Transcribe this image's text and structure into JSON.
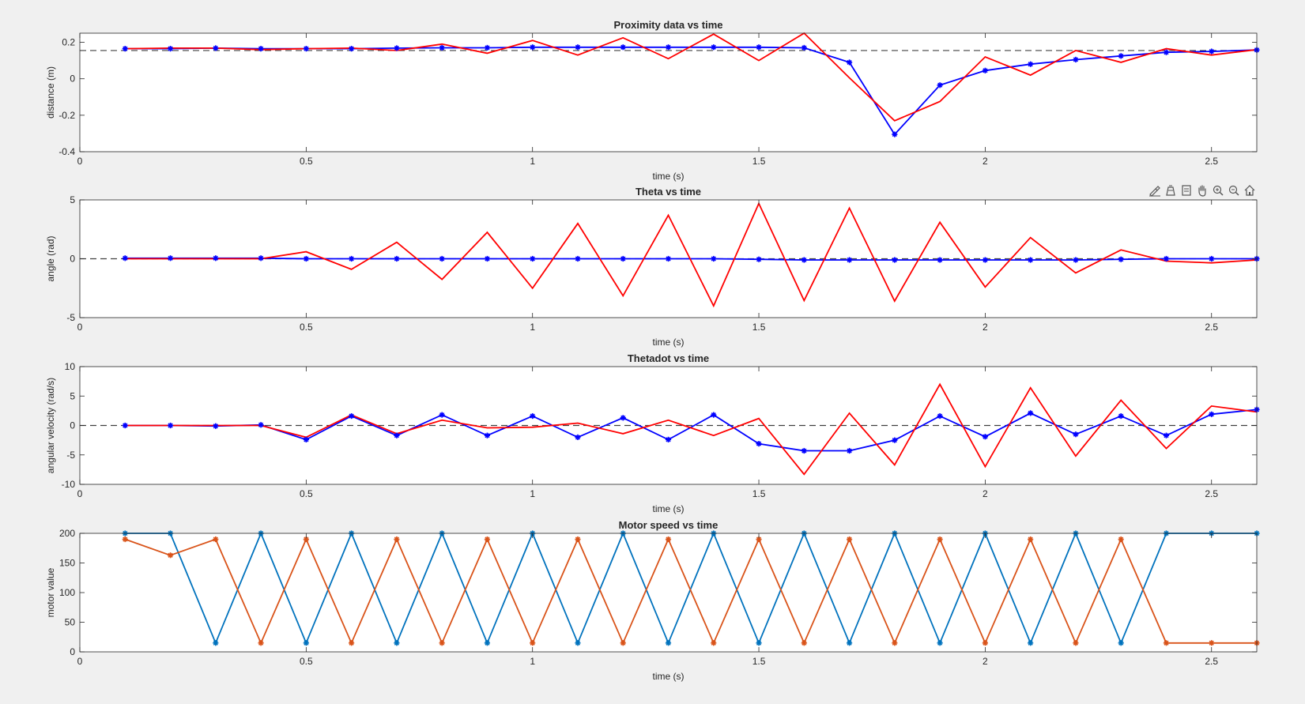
{
  "colors": {
    "background": "#f0f0f0",
    "axes_background": "#ffffff",
    "axes_edge": "#262626",
    "blue": "#0000ff",
    "red": "#ff0000",
    "matlab_blue": "#0072bd",
    "matlab_orange": "#d95319",
    "reference": "#404040"
  },
  "toolbar": {
    "icons": [
      "brush-icon",
      "data-tips-icon",
      "export-icon",
      "pan-icon",
      "zoom-in-icon",
      "zoom-out-icon",
      "home-icon"
    ]
  },
  "chart_data": [
    {
      "type": "line",
      "title": "Proximity data vs time",
      "xlabel": "time (s)",
      "ylabel": "distance (m)",
      "xlim": [
        0,
        2.6
      ],
      "ylim": [
        -0.4,
        0.25
      ],
      "xticks": [
        0,
        0.5,
        1,
        1.5,
        2,
        2.5
      ],
      "xtick_labels": [
        "0",
        "0.5",
        "1",
        "1.5",
        "2",
        "2.5"
      ],
      "yticks": [
        0.2,
        0,
        -0.2,
        -0.4
      ],
      "ytick_labels": [
        "0.2",
        "0",
        "-0.2",
        "-0.4"
      ],
      "grid": false,
      "reference_line": 0.155,
      "x": [
        0.1,
        0.2,
        0.3,
        0.4,
        0.5,
        0.6,
        0.7,
        0.8,
        0.9,
        1.0,
        1.1,
        1.2,
        1.3,
        1.4,
        1.5,
        1.6,
        1.7,
        1.8,
        1.9,
        2.0,
        2.1,
        2.2,
        2.3,
        2.4,
        2.5,
        2.6
      ],
      "series": [
        {
          "color": "#0000ff",
          "marker": "*",
          "values": [
            0.165,
            0.165,
            0.168,
            0.165,
            0.165,
            0.165,
            0.168,
            0.17,
            0.17,
            0.173,
            0.173,
            0.173,
            0.173,
            0.173,
            0.173,
            0.17,
            0.09,
            -0.305,
            -0.035,
            0.045,
            0.08,
            0.105,
            0.125,
            0.145,
            0.15,
            0.158
          ]
        },
        {
          "color": "#ff0000",
          "marker": "",
          "values": [
            0.165,
            0.168,
            0.168,
            0.16,
            0.165,
            0.168,
            0.155,
            0.19,
            0.14,
            0.21,
            0.13,
            0.225,
            0.11,
            0.245,
            0.1,
            0.25,
            0.005,
            -0.23,
            -0.125,
            0.12,
            0.02,
            0.155,
            0.09,
            0.165,
            0.13,
            0.16
          ]
        }
      ]
    },
    {
      "type": "line",
      "title": "Theta vs time",
      "xlabel": "time (s)",
      "ylabel": "angle (rad)",
      "xlim": [
        0,
        2.6
      ],
      "ylim": [
        -5,
        5
      ],
      "xticks": [
        0,
        0.5,
        1,
        1.5,
        2,
        2.5
      ],
      "xtick_labels": [
        "0",
        "0.5",
        "1",
        "1.5",
        "2",
        "2.5"
      ],
      "yticks": [
        5,
        0,
        -5
      ],
      "ytick_labels": [
        "5",
        "0",
        "-5"
      ],
      "grid": false,
      "reference_line": 0,
      "x": [
        0.1,
        0.2,
        0.3,
        0.4,
        0.5,
        0.6,
        0.7,
        0.8,
        0.9,
        1.0,
        1.1,
        1.2,
        1.3,
        1.4,
        1.5,
        1.6,
        1.7,
        1.8,
        1.9,
        2.0,
        2.1,
        2.2,
        2.3,
        2.4,
        2.5,
        2.6
      ],
      "series": [
        {
          "color": "#0000ff",
          "marker": "*",
          "values": [
            0.05,
            0.05,
            0.05,
            0.05,
            0.0,
            0.0,
            0.0,
            0.0,
            0.0,
            0.0,
            0.0,
            0.0,
            0.0,
            0.0,
            -0.05,
            -0.1,
            -0.1,
            -0.1,
            -0.1,
            -0.1,
            -0.1,
            -0.1,
            -0.05,
            0.0,
            0.0,
            0.0
          ]
        },
        {
          "color": "#ff0000",
          "marker": "",
          "values": [
            0.0,
            0.0,
            0.0,
            0.0,
            0.6,
            -0.9,
            1.4,
            -1.75,
            2.25,
            -2.5,
            3.0,
            -3.15,
            3.7,
            -4.0,
            4.7,
            -3.55,
            4.3,
            -3.6,
            3.1,
            -2.4,
            1.8,
            -1.2,
            0.75,
            -0.2,
            -0.35,
            -0.1
          ]
        }
      ]
    },
    {
      "type": "line",
      "title": "Thetadot vs time",
      "xlabel": "time (s)",
      "ylabel": "angular velocity (rad/s)",
      "xlim": [
        0,
        2.6
      ],
      "ylim": [
        -10,
        10
      ],
      "xticks": [
        0,
        0.5,
        1,
        1.5,
        2,
        2.5
      ],
      "xtick_labels": [
        "0",
        "0.5",
        "1",
        "1.5",
        "2",
        "2.5"
      ],
      "yticks": [
        10,
        5,
        0,
        -5,
        -10
      ],
      "ytick_labels": [
        "10",
        "5",
        "0",
        "-5",
        "-10"
      ],
      "grid": false,
      "reference_line": 0,
      "x": [
        0.1,
        0.2,
        0.3,
        0.4,
        0.5,
        0.6,
        0.7,
        0.8,
        0.9,
        1.0,
        1.1,
        1.2,
        1.3,
        1.4,
        1.5,
        1.6,
        1.7,
        1.8,
        1.9,
        2.0,
        2.1,
        2.2,
        2.3,
        2.4,
        2.5,
        2.6
      ],
      "series": [
        {
          "color": "#0000ff",
          "marker": "*",
          "values": [
            0.0,
            0.0,
            -0.1,
            0.1,
            -2.4,
            1.6,
            -1.7,
            1.8,
            -1.7,
            1.6,
            -2.0,
            1.3,
            -2.4,
            1.8,
            -3.1,
            -4.3,
            -4.3,
            -2.5,
            1.6,
            -1.9,
            2.1,
            -1.5,
            1.6,
            -1.7,
            1.9,
            2.7
          ]
        },
        {
          "color": "#ff0000",
          "marker": "",
          "values": [
            0.0,
            0.0,
            0.0,
            0.0,
            -2.0,
            1.8,
            -1.4,
            0.9,
            -0.4,
            -0.3,
            0.4,
            -1.4,
            0.9,
            -1.7,
            1.2,
            -8.3,
            2.1,
            -6.7,
            7.0,
            -7.0,
            6.4,
            -5.2,
            4.3,
            -3.9,
            3.3,
            2.3
          ]
        }
      ]
    },
    {
      "type": "line",
      "title": "Motor speed vs time",
      "xlabel": "time (s)",
      "ylabel": "motor value",
      "xlim": [
        0,
        2.6
      ],
      "ylim": [
        0,
        200
      ],
      "xticks": [
        0,
        0.5,
        1,
        1.5,
        2,
        2.5
      ],
      "xtick_labels": [
        "0",
        "0.5",
        "1",
        "1.5",
        "2",
        "2.5"
      ],
      "yticks": [
        200,
        150,
        100,
        50,
        0
      ],
      "ytick_labels": [
        "200",
        "150",
        "100",
        "50",
        "0"
      ],
      "grid": false,
      "x": [
        0.1,
        0.2,
        0.3,
        0.4,
        0.5,
        0.6,
        0.7,
        0.8,
        0.9,
        1.0,
        1.1,
        1.2,
        1.3,
        1.4,
        1.5,
        1.6,
        1.7,
        1.8,
        1.9,
        2.0,
        2.1,
        2.2,
        2.3,
        2.4,
        2.5,
        2.6
      ],
      "series": [
        {
          "color": "#0072bd",
          "marker": "*",
          "values": [
            200,
            200,
            15,
            200,
            15,
            200,
            15,
            200,
            15,
            200,
            15,
            200,
            15,
            200,
            15,
            200,
            15,
            200,
            15,
            200,
            15,
            200,
            15,
            200,
            200,
            200
          ]
        },
        {
          "color": "#d95319",
          "marker": "*",
          "values": [
            190,
            163,
            190,
            15,
            190,
            15,
            190,
            15,
            190,
            15,
            190,
            15,
            190,
            15,
            190,
            15,
            190,
            15,
            190,
            15,
            190,
            15,
            190,
            15,
            15,
            15
          ]
        }
      ]
    }
  ]
}
